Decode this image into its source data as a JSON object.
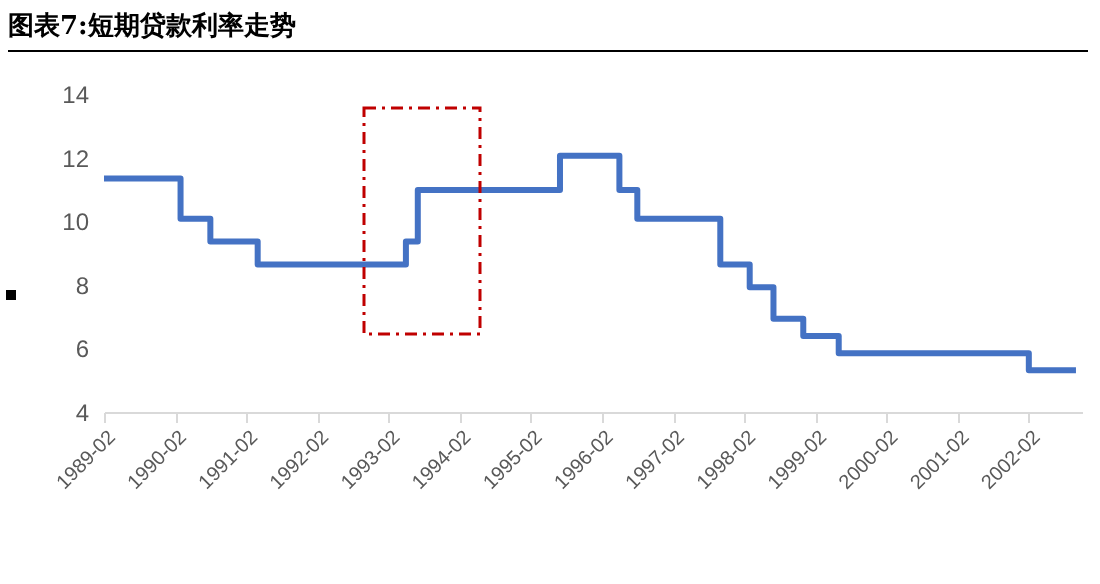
{
  "chart_data": {
    "type": "step",
    "title": "图表7:短期贷款利率走势",
    "x": [
      "1989-02",
      "1990-03",
      "1990-08",
      "1991-04",
      "1993-05",
      "1993-07",
      "1995-07",
      "1996-05",
      "1996-08",
      "1997-10",
      "1998-03",
      "1998-07",
      "1998-12",
      "1999-06",
      "2002-02",
      "2002-10"
    ],
    "series": [
      {
        "color": "#4472c4",
        "values": [
          11.34,
          10.08,
          9.36,
          8.64,
          9.36,
          10.98,
          12.06,
          10.98,
          10.08,
          8.64,
          7.92,
          6.93,
          6.39,
          5.85,
          5.31,
          5.31
        ]
      }
    ],
    "xlim": [
      "1989-02",
      "2002-11"
    ],
    "xticks": [
      "1989-02",
      "1990-02",
      "1991-02",
      "1992-02",
      "1993-02",
      "1994-02",
      "1995-02",
      "1996-02",
      "1997-02",
      "1998-02",
      "1999-02",
      "2000-02",
      "2001-02",
      "2002-02"
    ],
    "ylim": [
      4,
      14
    ],
    "yticks": [
      4,
      6,
      8,
      10,
      12,
      14
    ],
    "grid": false,
    "marker": "none",
    "line_style": "solid"
  }
}
